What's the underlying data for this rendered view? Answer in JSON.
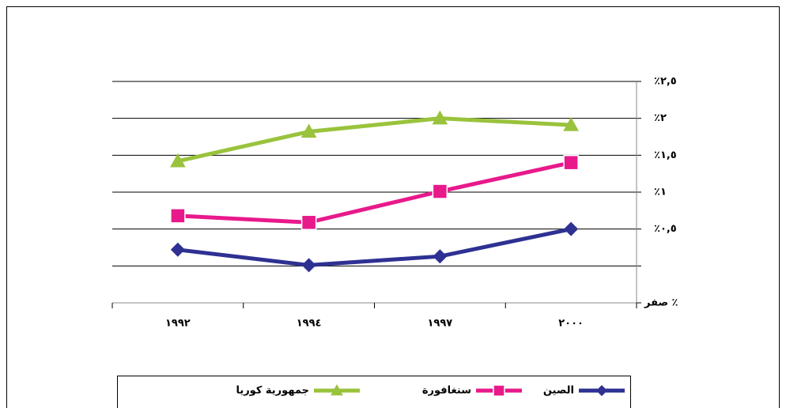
{
  "chart_data": {
    "type": "line",
    "categories": [
      "٢٠٠٠",
      "١٩٩٧",
      "١٩٩٤",
      "١٩٩٢"
    ],
    "series": [
      {
        "name": "جمهورية كوريا",
        "color": "#99c33c",
        "marker": "triangle",
        "values": [
          1.91,
          2.0,
          1.82,
          1.42
        ]
      },
      {
        "name": "سنغافورة",
        "color": "#e8198b",
        "marker": "square",
        "values": [
          1.4,
          1.01,
          0.59,
          0.68
        ]
      },
      {
        "name": "الصين",
        "color": "#2e3192",
        "marker": "diamond",
        "values": [
          0.5,
          0.13,
          0.01,
          0.22
        ]
      }
    ],
    "ylim": [
      -0.5,
      2.5
    ],
    "yticks": [
      {
        "value": 2.5,
        "label": "٪٢,٥"
      },
      {
        "value": 2,
        "label": "٪٢"
      },
      {
        "value": 1.5,
        "label": "٪١,٥"
      },
      {
        "value": 1,
        "label": "٪١"
      },
      {
        "value": 0.5,
        "label": "٪٠,٥"
      },
      {
        "value": 0,
        "label": null
      }
    ],
    "y_bottom_label": "صفر ٪",
    "grid": true,
    "y_axis_side": "right",
    "x_direction": "rtl"
  }
}
